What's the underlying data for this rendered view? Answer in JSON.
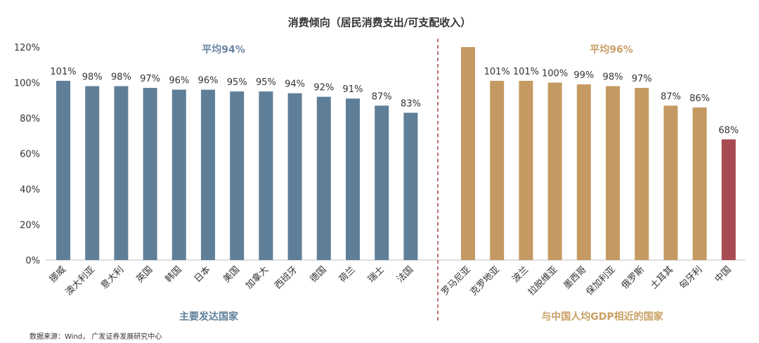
{
  "chart_data": {
    "type": "bar",
    "title": "消费倾向（居民消费支出/可支配收入）",
    "ylim": [
      0,
      120
    ],
    "yticks": [
      "0%",
      "20%",
      "40%",
      "60%",
      "80%",
      "100%",
      "120%"
    ],
    "grid": false,
    "groups": [
      {
        "name": "主要发达国家",
        "average_label": "平均94%",
        "color": "#5f7f99",
        "categories": [
          "挪威",
          "澳大利亚",
          "意大利",
          "英国",
          "韩国",
          "日本",
          "美国",
          "加拿大",
          "西班牙",
          "德国",
          "荷兰",
          "瑞士",
          "法国"
        ],
        "values": [
          101,
          98,
          98,
          97,
          96,
          96,
          95,
          95,
          94,
          92,
          91,
          87,
          83
        ],
        "labels": [
          "101%",
          "98%",
          "98%",
          "97%",
          "96%",
          "96%",
          "95%",
          "95%",
          "94%",
          "92%",
          "91%",
          "87%",
          "83%"
        ]
      },
      {
        "name": "与中国人均GDP相近的国家",
        "average_label": "平均96%",
        "color": "#c49a62",
        "highlight": {
          "category": "中国",
          "color": "#a84a52"
        },
        "categories": [
          "罗马尼亚",
          "克罗地亚",
          "波兰",
          "拉脱维亚",
          "墨西哥",
          "保加利亚",
          "俄罗斯",
          "土耳其",
          "匈牙利",
          "中国"
        ],
        "values": [
          120,
          101,
          101,
          100,
          99,
          98,
          97,
          87,
          86,
          68
        ],
        "labels": [
          "",
          "101%",
          "101%",
          "100%",
          "99%",
          "98%",
          "97%",
          "87%",
          "86%",
          "68%"
        ]
      }
    ],
    "divider": {
      "style": "dashed",
      "color": "#a8434a"
    }
  },
  "source_note": "数据来源：Wind， 广发证券发展研究中心"
}
